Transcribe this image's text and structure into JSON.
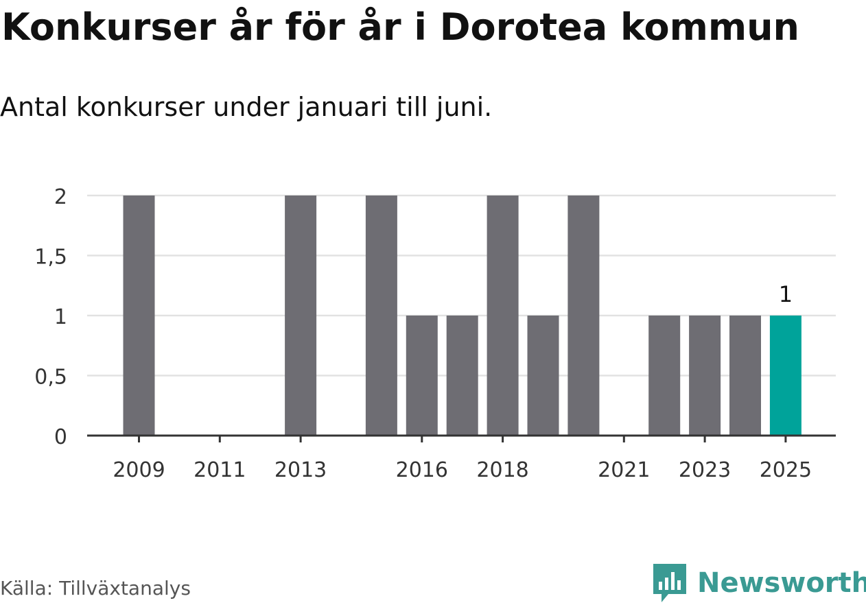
{
  "title": "Konkurser år för år i Dorotea kommun",
  "subtitle": "Antal konkurser under januari till juni.",
  "source": "Källa: Tillväxtanalys",
  "brand": {
    "name": "Newsworthy",
    "icon": "newsworthy-logo-icon",
    "color": "#3a9a93"
  },
  "colors": {
    "bar": "#6e6d73",
    "highlight": "#00a39a",
    "grid": "#e2e2e2",
    "axis": "#333333"
  },
  "chart_data": {
    "type": "bar",
    "title": "Konkurser år för år i Dorotea kommun",
    "subtitle": "Antal konkurser under januari till juni.",
    "xlabel": "",
    "ylabel": "",
    "categories": [
      "2009",
      "2010",
      "2011",
      "2012",
      "2013",
      "2014",
      "2015",
      "2016",
      "2017",
      "2018",
      "2019",
      "2020",
      "2021",
      "2022",
      "2023",
      "2024",
      "2025"
    ],
    "values": [
      2,
      0,
      0,
      0,
      2,
      0,
      2,
      1,
      1,
      2,
      1,
      2,
      0,
      1,
      1,
      1,
      1
    ],
    "highlight_category": "2025",
    "x_tick_labels": [
      "2009",
      "2011",
      "2013",
      "2016",
      "2018",
      "2021",
      "2023",
      "2025"
    ],
    "y_ticks": [
      0,
      0.5,
      1,
      1.5,
      2
    ],
    "y_tick_labels": [
      "0",
      "0,5",
      "1",
      "1,5",
      "2"
    ],
    "ylim": [
      0,
      2
    ],
    "grid": true,
    "data_labels": [
      {
        "category": "2025",
        "text": "1"
      }
    ]
  }
}
